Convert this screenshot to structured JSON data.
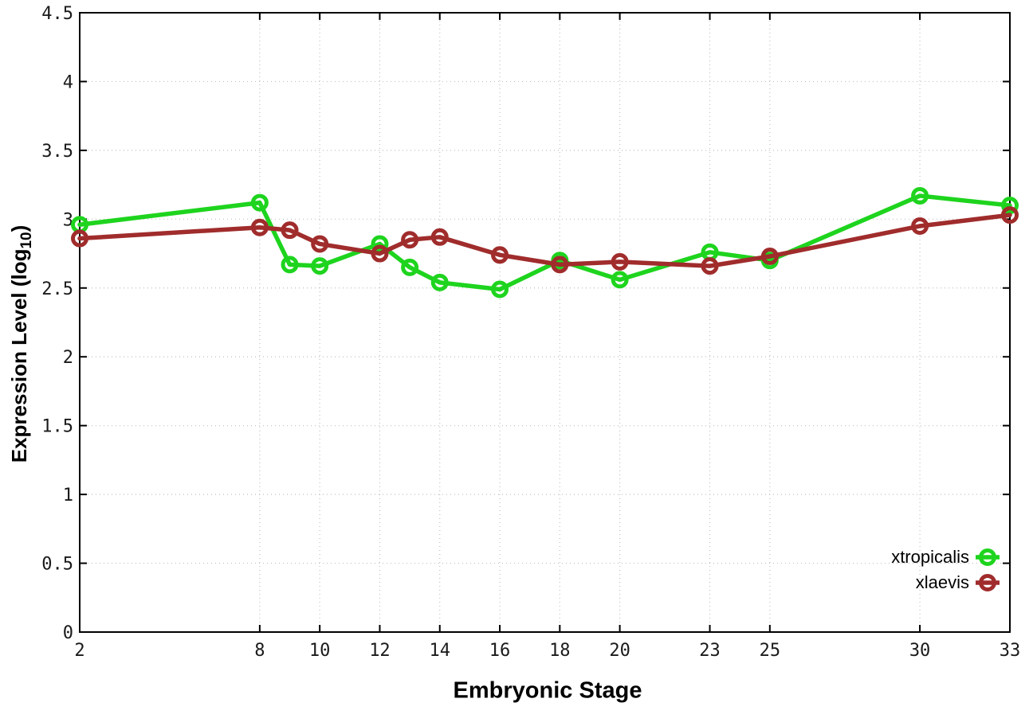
{
  "chart_data": {
    "type": "line",
    "title": "",
    "xlabel": "Embryonic Stage",
    "ylabel": "Expression Level (log10)",
    "ylabel_parts": {
      "prefix": "Expression Level (log",
      "sub": "10",
      "suffix": ")"
    },
    "x": [
      2,
      8,
      9,
      10,
      12,
      13,
      14,
      16,
      18,
      20,
      23,
      25,
      30,
      33
    ],
    "series": [
      {
        "name": "xtropicalis",
        "color": "#1ed41e",
        "values": [
          2.96,
          3.12,
          2.67,
          2.66,
          2.82,
          2.65,
          2.54,
          2.49,
          2.7,
          2.56,
          2.76,
          2.7,
          3.17,
          3.1
        ]
      },
      {
        "name": "xlaevis",
        "color": "#a02c2c",
        "values": [
          2.86,
          2.94,
          2.92,
          2.82,
          2.75,
          2.85,
          2.87,
          2.74,
          2.67,
          2.69,
          2.66,
          2.73,
          2.95,
          3.03
        ]
      }
    ],
    "xlim": [
      2,
      33
    ],
    "ylim": [
      0,
      4.5
    ],
    "x_ticks": [
      2,
      8,
      10,
      12,
      14,
      16,
      18,
      20,
      23,
      25,
      30,
      33
    ],
    "x_tick_labels": [
      "2",
      "8",
      "10",
      "12",
      "14",
      "16",
      "18",
      "20",
      "23",
      "25",
      "30",
      "33"
    ],
    "y_ticks": [
      0,
      0.5,
      1,
      1.5,
      2,
      2.5,
      3,
      3.5,
      4,
      4.5
    ],
    "y_tick_labels": [
      "0",
      "0.5",
      "1",
      "1.5",
      "2",
      "2.5",
      "3",
      "3.5",
      "4",
      "4.5"
    ],
    "grid": true,
    "legend_position": "bottom-right",
    "marker": "open-circle",
    "colors": {
      "grid": "#c0c0c0",
      "axis": "#000000",
      "tick_text": "#1a1a1a"
    }
  }
}
